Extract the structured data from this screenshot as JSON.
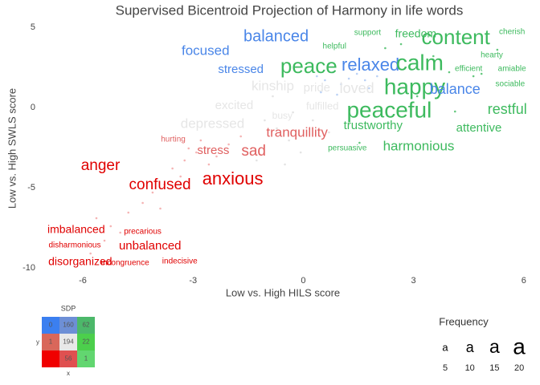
{
  "chart_data": {
    "type": "text-scatter",
    "title": "Supervised Bicentroid Projection of Harmony in life words",
    "x_label": "Low vs. High HILS score",
    "y_label": "Low vs. High SWLS score",
    "xlim": [
      -7.16,
      6.07
    ],
    "ylim": [
      -10.55,
      5.45
    ],
    "xticks": [
      -6,
      -3,
      0,
      3,
      6
    ],
    "yticks": [
      5,
      0,
      -5,
      -10
    ],
    "words": {
      "labels": [
        "balanced",
        "focused",
        "stressed",
        "peace",
        "relaxed",
        "calm",
        "happy",
        "content",
        "freedom",
        "support",
        "helpful",
        "cherish",
        "hearty",
        "efficient",
        "amiable",
        "sociable",
        "balance",
        "restful",
        "attentive",
        "peaceful",
        "trustworthy",
        "persuasive",
        "harmonious",
        "kinship",
        "pride",
        "loved",
        "excited",
        "fulfilled",
        "busy",
        "depressed",
        "tranquillity",
        "sad",
        "stress",
        "hurting",
        "anger",
        "confused",
        "anxious",
        "imbalanced",
        "precarious",
        "disharmonious",
        "unbalanced",
        "disorganized",
        "incongruence",
        "indecisive"
      ],
      "x": [
        -0.74,
        -2.66,
        -1.7,
        0.15,
        1.83,
        3.17,
        3.03,
        4.15,
        3.06,
        1.75,
        0.85,
        5.68,
        5.13,
        4.5,
        5.68,
        5.63,
        4.13,
        5.55,
        4.78,
        2.34,
        1.9,
        1.2,
        3.14,
        -0.83,
        0.37,
        1.46,
        -1.88,
        0.52,
        -0.57,
        -2.47,
        -0.17,
        -1.35,
        -2.45,
        -3.54,
        -5.52,
        -3.9,
        -1.92,
        -6.18,
        -4.37,
        -6.22,
        -4.17,
        -6.07,
        -4.85,
        -3.36
      ],
      "y": [
        4.4,
        3.5,
        2.35,
        2.5,
        2.6,
        2.7,
        1.2,
        4.3,
        4.55,
        4.65,
        3.8,
        4.7,
        3.25,
        2.4,
        2.4,
        1.45,
        1.1,
        -0.15,
        -1.3,
        -0.25,
        -1.15,
        -2.55,
        -2.45,
        1.3,
        1.2,
        1.15,
        0.1,
        0.05,
        -0.55,
        -1.05,
        -1.6,
        -2.75,
        -2.7,
        -2.0,
        -3.65,
        -4.85,
        -4.5,
        -7.65,
        -7.75,
        -8.6,
        -8.65,
        -9.65,
        -9.7,
        -9.6
      ],
      "sizes": [
        12,
        9,
        7,
        18,
        14,
        20,
        20,
        18,
        6,
        2,
        2,
        2,
        2,
        2,
        2,
        2,
        10,
        10,
        7,
        20,
        7,
        2,
        9,
        9,
        7,
        10,
        7,
        5,
        4,
        9,
        9,
        11,
        7,
        2,
        11,
        11,
        14,
        6,
        2,
        2,
        7,
        6,
        2,
        2
      ],
      "colors": [
        "#4a86e8",
        "#4a86e8",
        "#4a86e8",
        "#3dba5e",
        "#4a86e8",
        "#3dba5e",
        "#3dba5e",
        "#3dba5e",
        "#3dba5e",
        "#3dba5e",
        "#3dba5e",
        "#3dba5e",
        "#3dba5e",
        "#3dba5e",
        "#3dba5e",
        "#3dba5e",
        "#4a86e8",
        "#3dba5e",
        "#3dba5e",
        "#3dba5e",
        "#3dba5e",
        "#3dba5e",
        "#3dba5e",
        "#e6e6e6",
        "#e6e6e6",
        "#e6e6e6",
        "#e6e6e6",
        "#e6e6e6",
        "#e6e6e6",
        "#e6e6e6",
        "#e06060",
        "#e06060",
        "#e06060",
        "#e06060",
        "#e00000",
        "#e00000",
        "#e00000",
        "#e00000",
        "#e00000",
        "#e00000",
        "#e00000",
        "#e00000",
        "#e00000",
        "#e00000"
      ]
    },
    "dots": [
      {
        "color": "#f2a0a0",
        "x": [
          -5.63,
          -5.24,
          -4.98,
          -5.41,
          -5.79,
          -4.76,
          -4.37,
          -4.1,
          -3.78,
          -3.56,
          -3.23,
          -2.91,
          -3.89,
          -3.34,
          -2.57,
          -2.36,
          -2.03,
          -1.7,
          -3.12,
          -2.79
        ],
        "y": [
          -6.9,
          -7.4,
          -7.8,
          -8.3,
          -9.1,
          -6.55,
          -5.95,
          -5.3,
          -4.8,
          -3.8,
          -3.3,
          -2.8,
          -6.3,
          -4.3,
          -3.55,
          -3.05,
          -2.3,
          -1.8,
          -2.55,
          -2.05
        ]
      },
      {
        "color": "#dcdcdc",
        "x": [
          -1.05,
          -0.72,
          -0.39,
          -0.07,
          -0.5,
          -1.27,
          -0.83,
          -0.28,
          0.26,
          0.7
        ],
        "y": [
          -0.8,
          -1.3,
          -2.05,
          -2.8,
          -3.55,
          -3.3,
          0.7,
          -0.3,
          -0.8,
          -1.55
        ]
      },
      {
        "color": "#a9c6f2",
        "x": [
          0.37,
          0.59,
          0.81,
          1.03,
          1.24,
          1.46,
          1.68,
          0.48,
          0.92,
          1.35,
          0.7,
          1.79,
          2.01
        ],
        "y": [
          1.95,
          1.7,
          2.2,
          1.45,
          1.8,
          2.1,
          1.7,
          0.95,
          0.8,
          2.45,
          2.7,
          1.2,
          1.95
        ]
      },
      {
        "color": "#3dba5e",
        "x": [
          2.23,
          2.66,
          3.54,
          3.97,
          4.63,
          4.85,
          5.28,
          4.13,
          1.53,
          3.1
        ],
        "y": [
          3.7,
          3.95,
          3.2,
          2.2,
          1.95,
          2.1,
          3.6,
          -0.25,
          -2.2,
          0.7
        ]
      }
    ],
    "sdp": {
      "title": "SDP",
      "x_label": "x",
      "y_label": "y",
      "cells": [
        [
          0,
          160,
          62
        ],
        [
          1,
          194,
          22
        ],
        [
          null,
          56,
          1
        ]
      ],
      "colors": [
        [
          "#3b7ff0",
          "#6d8fd6",
          "#4cb86a"
        ],
        [
          "#d9675a",
          "#e8e8e8",
          "#4ccf4c"
        ],
        [
          "#f00000",
          "#e05050",
          "#62d670"
        ]
      ]
    },
    "size_legend": {
      "title": "Frequency",
      "glyph": "a",
      "values": [
        5,
        10,
        15,
        20
      ]
    }
  }
}
